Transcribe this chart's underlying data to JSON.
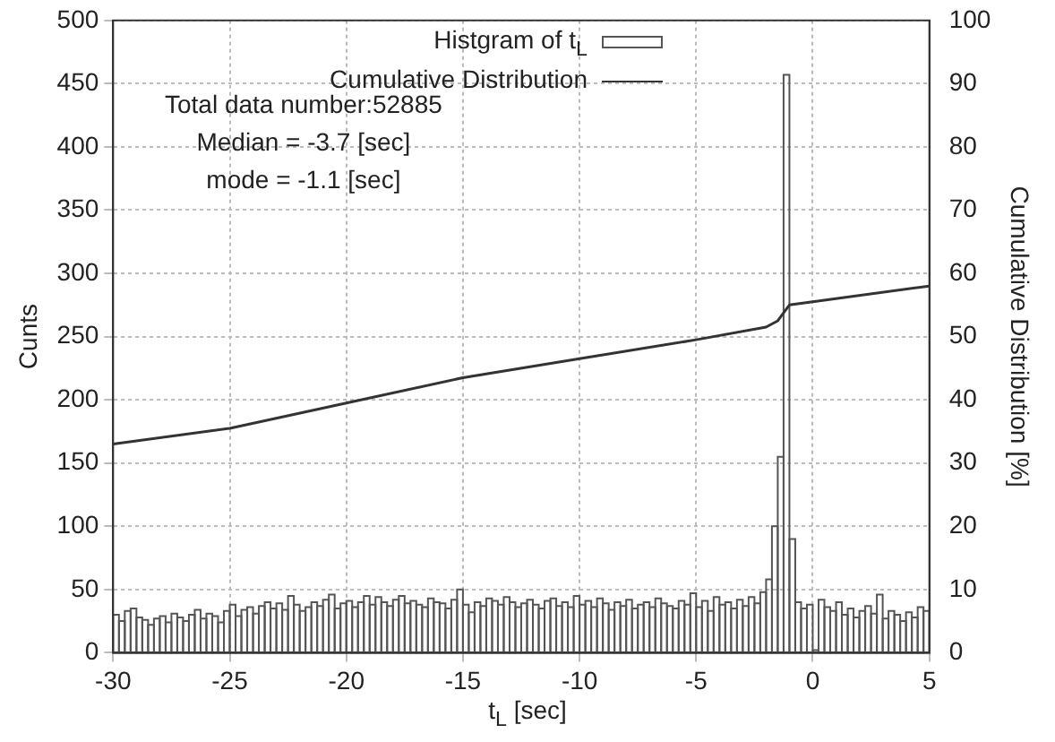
{
  "chart_data": {
    "type": "histogram",
    "xlabel": "t$_{L}$ [sec]",
    "ylabel": "Cunts",
    "y2label": "Cumulative Distribution [%]",
    "annotations": [
      "Total data number:52885",
      "Median = -3.7 [sec]",
      "mode = -1.1 [sec]"
    ],
    "bins": [
      -30,
      -29.75,
      -29.5,
      -29.25,
      -29,
      -28.75,
      -28.5,
      -28.25,
      -28,
      -27.75,
      -27.5,
      -27.25,
      -27,
      -26.75,
      -26.5,
      -26.25,
      -26,
      -25.75,
      -25.5,
      -25.25,
      -25,
      -24.75,
      -24.5,
      -24.25,
      -24,
      -23.75,
      -23.5,
      -23.25,
      -23,
      -22.75,
      -22.5,
      -22.25,
      -22,
      -21.75,
      -21.5,
      -21.25,
      -21,
      -20.75,
      -20.5,
      -20.25,
      -20,
      -19.75,
      -19.5,
      -19.25,
      -19,
      -18.75,
      -18.5,
      -18.25,
      -18,
      -17.75,
      -17.5,
      -17.25,
      -17,
      -16.75,
      -16.5,
      -16.25,
      -16,
      -15.75,
      -15.5,
      -15.25,
      -15,
      -14.75,
      -14.5,
      -14.25,
      -14,
      -13.75,
      -13.5,
      -13.25,
      -13,
      -12.75,
      -12.5,
      -12.25,
      -12,
      -11.75,
      -11.5,
      -11.25,
      -11,
      -10.75,
      -10.5,
      -10.25,
      -10,
      -9.75,
      -9.5,
      -9.25,
      -9,
      -8.75,
      -8.5,
      -8.25,
      -8,
      -7.75,
      -7.5,
      -7.25,
      -7,
      -6.75,
      -6.5,
      -6.25,
      -6,
      -5.75,
      -5.5,
      -5.25,
      -5,
      -4.75,
      -4.5,
      -4.25,
      -4,
      -3.75,
      -3.5,
      -3.25,
      -3,
      -2.75,
      -2.5,
      -2.25,
      -2,
      -1.75,
      -1.5,
      -1.25,
      -1,
      -0.75,
      -0.5,
      -0.25,
      0,
      0.25,
      0.5,
      0.75,
      1,
      1.25,
      1.5,
      1.75,
      2,
      2.25,
      2.5,
      2.75,
      3,
      3.25,
      3.5,
      3.75,
      4,
      4.25,
      4.5,
      4.75,
      5
    ],
    "series": [
      {
        "name": "Histgram of t$_{L}$",
        "color": "#555555",
        "values": [
          30,
          25,
          33,
          35,
          28,
          26,
          22,
          27,
          29,
          24,
          31,
          28,
          25,
          30,
          34,
          27,
          31,
          29,
          24,
          33,
          38,
          29,
          34,
          36,
          31,
          37,
          40,
          35,
          39,
          34,
          45,
          38,
          33,
          36,
          40,
          37,
          42,
          46,
          35,
          39,
          41,
          36,
          40,
          45,
          38,
          44,
          40,
          37,
          42,
          45,
          39,
          41,
          38,
          36,
          43,
          40,
          39,
          35,
          42,
          50,
          38,
          32,
          40,
          37,
          43,
          41,
          38,
          44,
          40,
          36,
          39,
          42,
          38,
          35,
          41,
          43,
          37,
          40,
          36,
          45,
          38,
          41,
          36,
          43,
          39,
          34,
          40,
          37,
          42,
          35,
          38,
          40,
          36,
          43,
          39,
          37,
          35,
          41,
          38,
          47,
          36,
          41,
          33,
          44,
          38,
          40,
          35,
          42,
          37,
          44,
          39,
          48,
          58,
          100,
          155,
          457,
          90,
          40,
          35,
          38,
          2,
          42,
          36,
          33,
          40,
          30,
          35,
          28,
          33,
          37,
          31,
          46,
          27,
          33,
          30,
          25,
          32,
          28,
          36,
          33
        ]
      },
      {
        "name": "Cumulative Distribution",
        "type": "line",
        "axis": "y2",
        "color": "#333333",
        "x": [
          -30,
          -25,
          -20,
          -15,
          -10,
          -5,
          -2,
          -1.5,
          -1.2,
          -1,
          0,
          5
        ],
        "values": [
          33,
          35.5,
          39.5,
          43.5,
          46.5,
          49.5,
          51.5,
          52.5,
          54,
          55,
          55.5,
          58
        ]
      }
    ],
    "xlim": [
      -30,
      5
    ],
    "xticks": [
      -30,
      -25,
      -20,
      -15,
      -10,
      -5,
      0,
      5
    ],
    "ylim": [
      0,
      500
    ],
    "yticks": [
      0,
      50,
      100,
      150,
      200,
      250,
      300,
      350,
      400,
      450,
      500
    ],
    "y2lim": [
      0,
      100
    ],
    "y2ticks": [
      0,
      10,
      20,
      30,
      40,
      50,
      60,
      70,
      80,
      90,
      100
    ],
    "grid": true,
    "legend": "top"
  }
}
